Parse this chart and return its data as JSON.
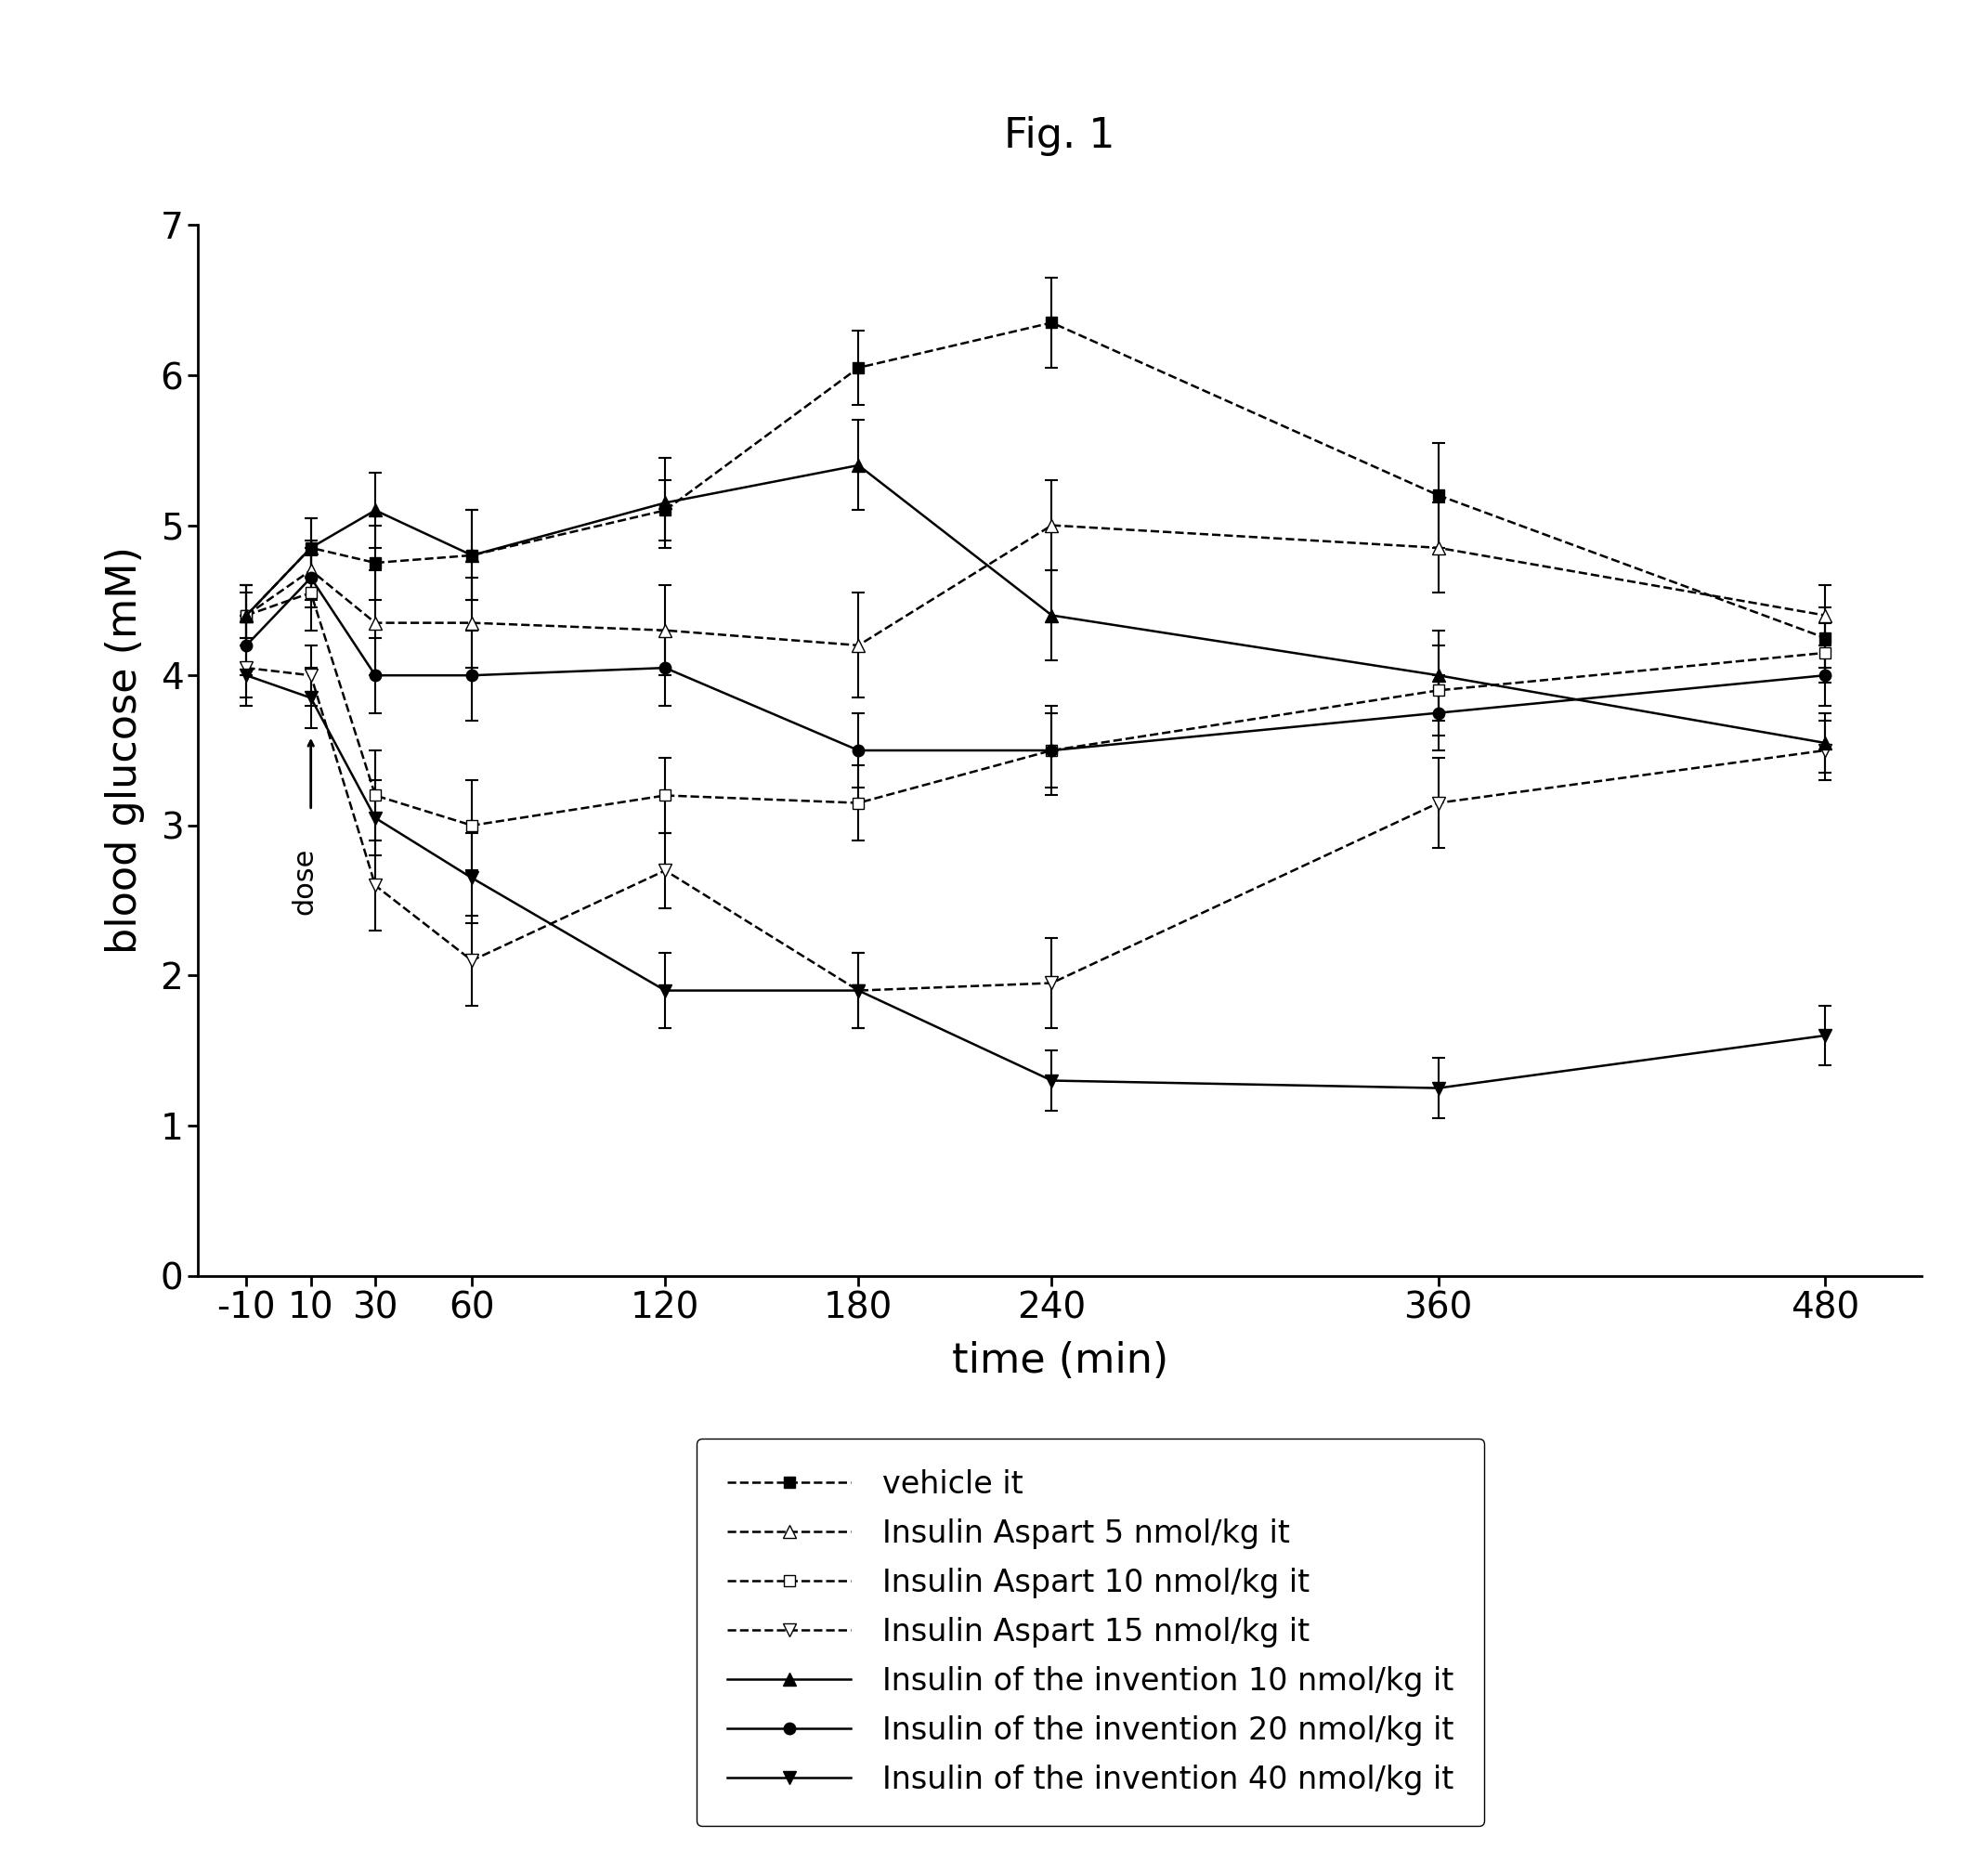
{
  "title": "Fig. 1",
  "xlabel": "time (min)",
  "ylabel": "blood glucose (mM)",
  "x_positions": [
    -10,
    10,
    30,
    60,
    120,
    180,
    240,
    360,
    480
  ],
  "x_tick_labels": [
    "-10",
    "10",
    "30",
    "60",
    "120",
    "180",
    "240",
    "360",
    "480"
  ],
  "ylim": [
    0,
    7
  ],
  "y_ticks": [
    0,
    1,
    2,
    3,
    4,
    5,
    6,
    7
  ],
  "series": [
    {
      "label": "vehicle it",
      "x": [
        -10,
        10,
        30,
        60,
        120,
        180,
        240,
        360,
        480
      ],
      "y": [
        4.4,
        4.85,
        4.75,
        4.8,
        5.1,
        6.05,
        6.35,
        5.2,
        4.25
      ],
      "yerr": [
        0.15,
        0.2,
        0.25,
        0.3,
        0.2,
        0.25,
        0.3,
        0.35,
        0.2
      ],
      "color": "#000000",
      "linestyle": "--",
      "marker": "s",
      "markerfacecolor": "#000000",
      "markersize": 9
    },
    {
      "label": "Insulin Aspart 5 nmol/kg it",
      "x": [
        -10,
        10,
        30,
        60,
        120,
        180,
        240,
        360,
        480
      ],
      "y": [
        4.4,
        4.7,
        4.35,
        4.35,
        4.3,
        4.2,
        5.0,
        4.85,
        4.4
      ],
      "yerr": [
        0.2,
        0.2,
        0.35,
        0.3,
        0.3,
        0.35,
        0.3,
        0.3,
        0.2
      ],
      "color": "#000000",
      "linestyle": "--",
      "marker": "^",
      "markerfacecolor": "#ffffff",
      "markersize": 10
    },
    {
      "label": "Insulin Aspart 10 nmol/kg it",
      "x": [
        -10,
        10,
        30,
        60,
        120,
        180,
        240,
        360,
        480
      ],
      "y": [
        4.4,
        4.55,
        3.2,
        3.0,
        3.2,
        3.15,
        3.5,
        3.9,
        4.15
      ],
      "yerr": [
        0.2,
        0.25,
        0.3,
        0.3,
        0.25,
        0.25,
        0.3,
        0.3,
        0.2
      ],
      "color": "#000000",
      "linestyle": "--",
      "marker": "s",
      "markerfacecolor": "#ffffff",
      "markersize": 9
    },
    {
      "label": "Insulin Aspart 15 nmol/kg it",
      "x": [
        -10,
        10,
        30,
        60,
        120,
        180,
        240,
        360,
        480
      ],
      "y": [
        4.05,
        4.0,
        2.6,
        2.1,
        2.7,
        1.9,
        1.95,
        3.15,
        3.5
      ],
      "yerr": [
        0.2,
        0.2,
        0.3,
        0.3,
        0.25,
        0.25,
        0.3,
        0.3,
        0.2
      ],
      "color": "#000000",
      "linestyle": "--",
      "marker": "v",
      "markerfacecolor": "#ffffff",
      "markersize": 10
    },
    {
      "label": "Insulin of the invention 10 nmol/kg it",
      "x": [
        -10,
        10,
        30,
        60,
        120,
        180,
        240,
        360,
        480
      ],
      "y": [
        4.4,
        4.85,
        5.1,
        4.8,
        5.15,
        5.4,
        4.4,
        4.0,
        3.55
      ],
      "yerr": [
        0.2,
        0.2,
        0.25,
        0.3,
        0.3,
        0.3,
        0.3,
        0.3,
        0.2
      ],
      "color": "#000000",
      "linestyle": "-",
      "marker": "^",
      "markerfacecolor": "#000000",
      "markersize": 10
    },
    {
      "label": "Insulin of the invention 20 nmol/kg it",
      "x": [
        -10,
        10,
        30,
        60,
        120,
        180,
        240,
        360,
        480
      ],
      "y": [
        4.2,
        4.65,
        4.0,
        4.0,
        4.05,
        3.5,
        3.5,
        3.75,
        4.0
      ],
      "yerr": [
        0.2,
        0.2,
        0.25,
        0.3,
        0.25,
        0.25,
        0.25,
        0.25,
        0.2
      ],
      "color": "#000000",
      "linestyle": "-",
      "marker": "o",
      "markerfacecolor": "#000000",
      "markersize": 9
    },
    {
      "label": "Insulin of the invention 40 nmol/kg it",
      "x": [
        -10,
        10,
        30,
        60,
        120,
        180,
        240,
        360,
        480
      ],
      "y": [
        4.0,
        3.85,
        3.05,
        2.65,
        1.9,
        1.9,
        1.3,
        1.25,
        1.6
      ],
      "yerr": [
        0.2,
        0.2,
        0.25,
        0.3,
        0.25,
        0.25,
        0.2,
        0.2,
        0.2
      ],
      "color": "#000000",
      "linestyle": "-",
      "marker": "v",
      "markerfacecolor": "#000000",
      "markersize": 10
    }
  ]
}
